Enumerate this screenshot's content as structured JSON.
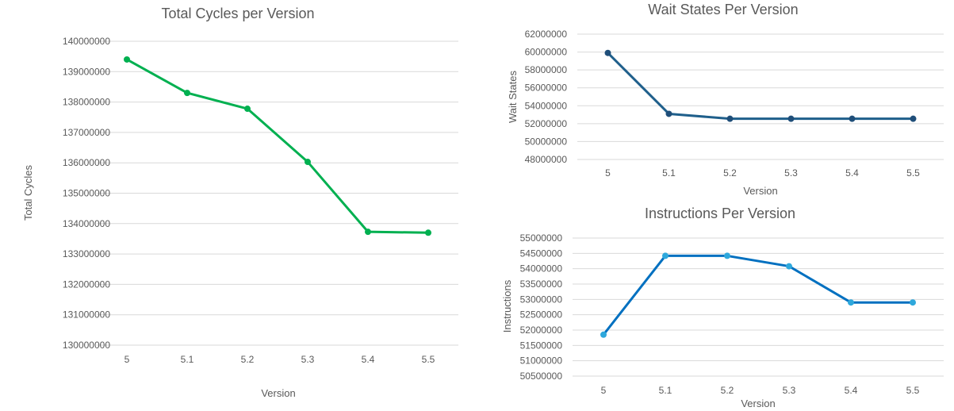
{
  "chart_data": [
    {
      "type": "line",
      "title": "Total Cycles per Version",
      "xlabel": "Version",
      "ylabel": "Total Cycles",
      "categories": [
        "5",
        "5.1",
        "5.2",
        "5.3",
        "5.4",
        "5.5"
      ],
      "series": [
        {
          "values": [
            139400000,
            138300000,
            137780000,
            136030000,
            133730000,
            133700000
          ],
          "color": "#00b050"
        }
      ],
      "ylim": [
        130000000,
        140000000
      ],
      "yticks": [
        "130000000",
        "131000000",
        "132000000",
        "133000000",
        "134000000",
        "135000000",
        "136000000",
        "137000000",
        "138000000",
        "139000000",
        "140000000"
      ],
      "grid": true
    },
    {
      "type": "line",
      "title": "Wait States Per Version",
      "xlabel": "Version",
      "ylabel": "Wait States",
      "categories": [
        "5",
        "5.1",
        "5.2",
        "5.3",
        "5.4",
        "5.5"
      ],
      "series": [
        {
          "values": [
            59900000,
            53100000,
            52550000,
            52550000,
            52550000,
            52550000
          ],
          "color": "#1f5f8b",
          "marker_color": "#1f4e79"
        }
      ],
      "ylim": [
        48000000,
        62000000
      ],
      "yticks": [
        "48000000",
        "50000000",
        "52000000",
        "54000000",
        "56000000",
        "58000000",
        "60000000",
        "62000000"
      ],
      "grid": true
    },
    {
      "type": "line",
      "title": "Instructions Per Version",
      "xlabel": "Version",
      "ylabel": "Instructions",
      "categories": [
        "5",
        "5.1",
        "5.2",
        "5.3",
        "5.4",
        "5.5"
      ],
      "series": [
        {
          "values": [
            51850000,
            54420000,
            54420000,
            54080000,
            52900000,
            52900000
          ],
          "color": "#0070c0",
          "marker_color": "#2ea8dc"
        }
      ],
      "ylim": [
        50500000,
        55000000
      ],
      "yticks": [
        "50500000",
        "51000000",
        "51500000",
        "52000000",
        "52500000",
        "53000000",
        "53500000",
        "54000000",
        "54500000",
        "55000000"
      ],
      "grid": true
    }
  ]
}
